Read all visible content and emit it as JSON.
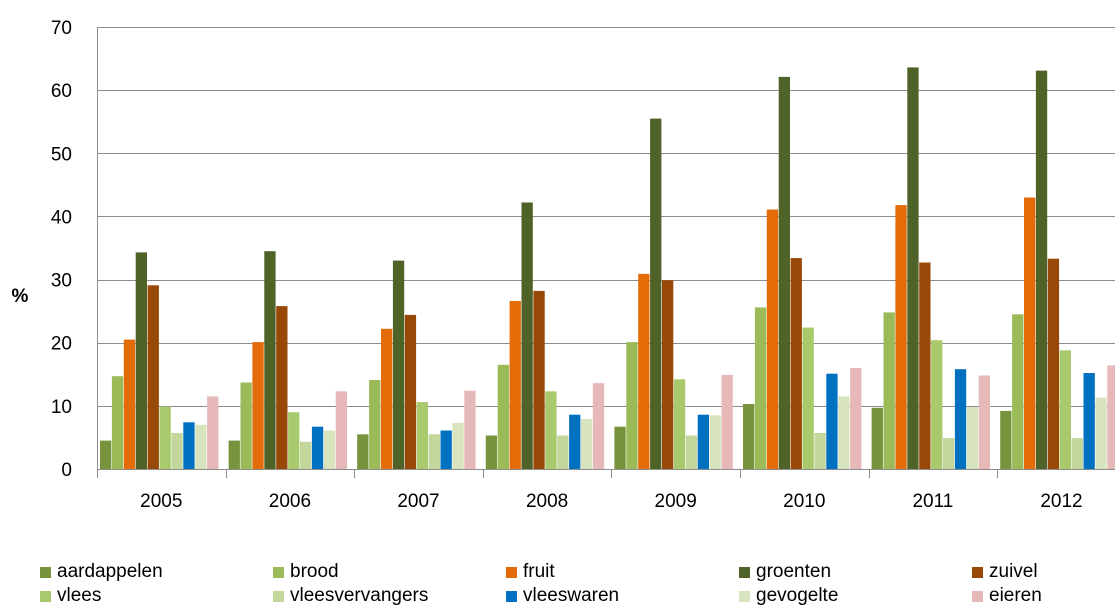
{
  "chart_data": {
    "type": "bar",
    "title": "",
    "xlabel": "",
    "ylabel": "%",
    "ylim": [
      0,
      70
    ],
    "yticks": [
      0,
      10,
      20,
      30,
      40,
      50,
      60,
      70
    ],
    "grid": "horizontal",
    "legend_position": "bottom",
    "categories": [
      "2005",
      "2006",
      "2007",
      "2008",
      "2009",
      "2010",
      "2011",
      "2012"
    ],
    "series": [
      {
        "name": "aardappelen",
        "color": "#77933c",
        "values": [
          4.5,
          4.5,
          5.5,
          5.3,
          6.7,
          10.3,
          9.7,
          9.2
        ]
      },
      {
        "name": "brood",
        "color": "#9bbb59",
        "values": [
          14.7,
          13.7,
          14.1,
          16.5,
          20.1,
          25.6,
          24.8,
          24.5
        ]
      },
      {
        "name": "fruit",
        "color": "#e36c09",
        "values": [
          20.5,
          20.1,
          22.2,
          26.6,
          30.9,
          41.1,
          41.8,
          43.0
        ]
      },
      {
        "name": "groenten",
        "color": "#4f6228",
        "values": [
          34.3,
          34.5,
          33.0,
          42.2,
          55.5,
          62.1,
          63.6,
          63.1
        ]
      },
      {
        "name": "zuivel",
        "color": "#984807",
        "values": [
          29.1,
          25.8,
          24.4,
          28.2,
          29.9,
          33.4,
          32.7,
          33.3
        ]
      },
      {
        "name": "vlees",
        "color": "#a9c96d",
        "values": [
          9.9,
          9.0,
          10.6,
          12.3,
          14.2,
          22.4,
          20.4,
          18.8
        ]
      },
      {
        "name": "vleesvervangers",
        "color": "#c3d69b",
        "values": [
          5.7,
          4.3,
          5.5,
          5.3,
          5.3,
          5.7,
          4.9,
          4.9
        ]
      },
      {
        "name": "vleeswaren",
        "color": "#0070c0",
        "values": [
          7.4,
          6.7,
          6.1,
          8.6,
          8.6,
          15.1,
          15.8,
          15.2
        ]
      },
      {
        "name": "gevogelte",
        "color": "#d7e4bd",
        "values": [
          7.0,
          6.1,
          7.3,
          7.9,
          8.5,
          11.5,
          9.8,
          11.3
        ]
      },
      {
        "name": "eieren",
        "color": "#e6b9b8",
        "values": [
          11.5,
          12.3,
          12.4,
          13.6,
          14.9,
          16.0,
          14.8,
          16.4
        ]
      }
    ]
  }
}
